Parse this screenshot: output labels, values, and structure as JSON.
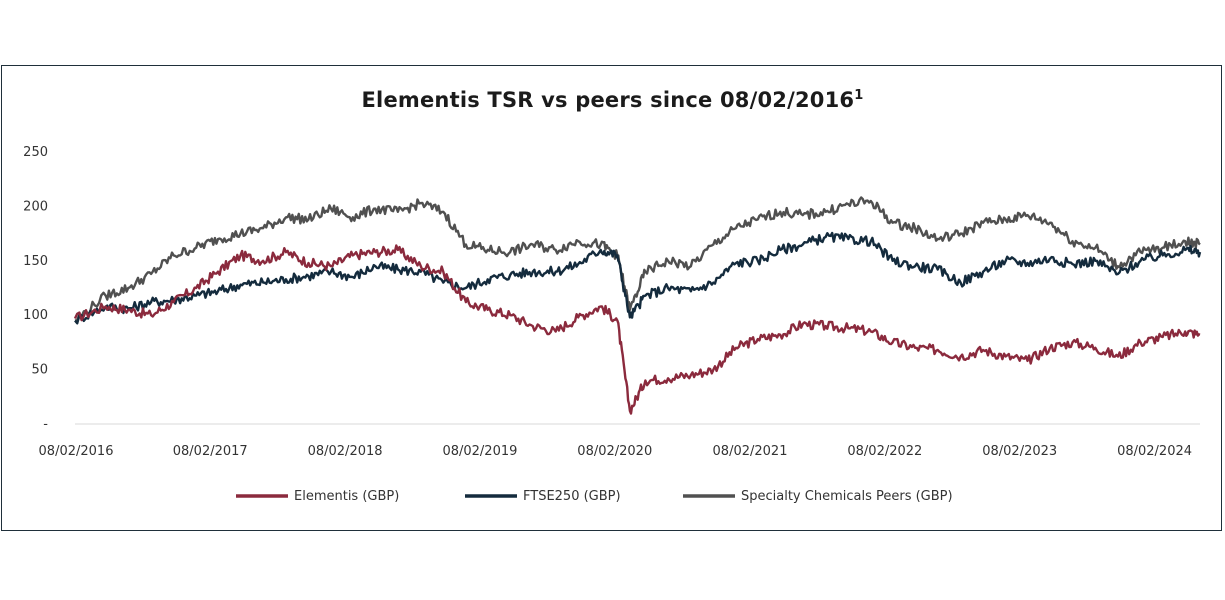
{
  "chart_data": {
    "type": "line",
    "title": "Elementis TSR vs peers since 08/02/2016",
    "title_superscript": "1",
    "xlabel": "",
    "ylabel": "",
    "ylim": [
      0,
      250
    ],
    "y_ticks": [
      {
        "value": 0,
        "label": "-"
      },
      {
        "value": 50,
        "label": "50"
      },
      {
        "value": 100,
        "label": "100"
      },
      {
        "value": 150,
        "label": "150"
      },
      {
        "value": 200,
        "label": "200"
      },
      {
        "value": 250,
        "label": "250"
      }
    ],
    "x_ticks": [
      "08/02/2016",
      "08/02/2017",
      "08/02/2018",
      "08/02/2019",
      "08/02/2020",
      "08/02/2021",
      "08/02/2022",
      "08/02/2023",
      "08/02/2024"
    ],
    "grid": false,
    "legend_position": "bottom",
    "series": [
      {
        "name": "Elementis (GBP)",
        "color": "#8b2a3d",
        "points": [
          [
            "2016-02-08",
            97
          ],
          [
            "2016-05-01",
            108
          ],
          [
            "2016-07-01",
            105
          ],
          [
            "2016-09-01",
            100
          ],
          [
            "2016-11-01",
            112
          ],
          [
            "2017-01-01",
            125
          ],
          [
            "2017-03-01",
            140
          ],
          [
            "2017-05-01",
            155
          ],
          [
            "2017-07-01",
            150
          ],
          [
            "2017-09-01",
            158
          ],
          [
            "2017-11-01",
            148
          ],
          [
            "2018-01-01",
            145
          ],
          [
            "2018-03-01",
            155
          ],
          [
            "2018-05-01",
            158
          ],
          [
            "2018-07-01",
            160
          ],
          [
            "2018-09-01",
            145
          ],
          [
            "2018-11-01",
            140
          ],
          [
            "2019-01-01",
            112
          ],
          [
            "2019-03-01",
            105
          ],
          [
            "2019-05-01",
            100
          ],
          [
            "2019-07-01",
            90
          ],
          [
            "2019-09-01",
            85
          ],
          [
            "2019-11-01",
            98
          ],
          [
            "2020-01-01",
            108
          ],
          [
            "2020-02-15",
            95
          ],
          [
            "2020-03-20",
            12
          ],
          [
            "2020-05-01",
            40
          ],
          [
            "2020-07-01",
            42
          ],
          [
            "2020-09-01",
            45
          ],
          [
            "2020-11-01",
            50
          ],
          [
            "2021-01-01",
            70
          ],
          [
            "2021-03-01",
            78
          ],
          [
            "2021-05-01",
            82
          ],
          [
            "2021-07-01",
            92
          ],
          [
            "2021-09-01",
            90
          ],
          [
            "2021-11-01",
            88
          ],
          [
            "2022-01-01",
            85
          ],
          [
            "2022-03-01",
            75
          ],
          [
            "2022-05-01",
            70
          ],
          [
            "2022-07-01",
            68
          ],
          [
            "2022-09-01",
            62
          ],
          [
            "2022-11-01",
            68
          ],
          [
            "2023-01-01",
            62
          ],
          [
            "2023-03-01",
            58
          ],
          [
            "2023-05-01",
            70
          ],
          [
            "2023-07-01",
            75
          ],
          [
            "2023-09-01",
            70
          ],
          [
            "2023-11-01",
            62
          ],
          [
            "2024-01-01",
            75
          ],
          [
            "2024-03-01",
            80
          ],
          [
            "2024-05-01",
            85
          ],
          [
            "2024-06-10",
            82
          ]
        ]
      },
      {
        "name": "FTSE250 (GBP)",
        "color": "#142b3d",
        "points": [
          [
            "2016-02-08",
            95
          ],
          [
            "2016-05-01",
            108
          ],
          [
            "2016-07-01",
            106
          ],
          [
            "2016-09-01",
            112
          ],
          [
            "2016-11-01",
            114
          ],
          [
            "2017-01-01",
            118
          ],
          [
            "2017-03-01",
            122
          ],
          [
            "2017-05-01",
            128
          ],
          [
            "2017-07-01",
            130
          ],
          [
            "2017-09-01",
            133
          ],
          [
            "2017-11-01",
            136
          ],
          [
            "2018-01-01",
            140
          ],
          [
            "2018-03-01",
            135
          ],
          [
            "2018-05-01",
            145
          ],
          [
            "2018-07-01",
            142
          ],
          [
            "2018-09-01",
            140
          ],
          [
            "2018-11-01",
            130
          ],
          [
            "2019-01-01",
            125
          ],
          [
            "2019-03-01",
            133
          ],
          [
            "2019-05-01",
            137
          ],
          [
            "2019-07-01",
            140
          ],
          [
            "2019-09-01",
            140
          ],
          [
            "2019-11-01",
            147
          ],
          [
            "2020-01-01",
            160
          ],
          [
            "2020-02-15",
            155
          ],
          [
            "2020-03-20",
            98
          ],
          [
            "2020-05-01",
            118
          ],
          [
            "2020-07-01",
            125
          ],
          [
            "2020-09-01",
            122
          ],
          [
            "2020-11-01",
            130
          ],
          [
            "2021-01-01",
            148
          ],
          [
            "2021-03-01",
            150
          ],
          [
            "2021-05-01",
            160
          ],
          [
            "2021-07-01",
            165
          ],
          [
            "2021-09-01",
            172
          ],
          [
            "2021-11-01",
            170
          ],
          [
            "2022-01-01",
            168
          ],
          [
            "2022-03-01",
            150
          ],
          [
            "2022-05-01",
            145
          ],
          [
            "2022-07-01",
            142
          ],
          [
            "2022-09-01",
            130
          ],
          [
            "2022-11-01",
            140
          ],
          [
            "2023-01-01",
            150
          ],
          [
            "2023-03-01",
            148
          ],
          [
            "2023-05-01",
            152
          ],
          [
            "2023-07-01",
            147
          ],
          [
            "2023-09-01",
            150
          ],
          [
            "2023-11-01",
            138
          ],
          [
            "2024-01-01",
            150
          ],
          [
            "2024-03-01",
            155
          ],
          [
            "2024-05-01",
            160
          ],
          [
            "2024-06-10",
            158
          ]
        ]
      },
      {
        "name": "Specialty Chemicals Peers (GBP)",
        "color": "#505050",
        "points": [
          [
            "2016-02-08",
            95
          ],
          [
            "2016-05-01",
            118
          ],
          [
            "2016-07-01",
            125
          ],
          [
            "2016-09-01",
            138
          ],
          [
            "2016-11-01",
            155
          ],
          [
            "2017-01-01",
            162
          ],
          [
            "2017-03-01",
            170
          ],
          [
            "2017-05-01",
            175
          ],
          [
            "2017-07-01",
            180
          ],
          [
            "2017-09-01",
            190
          ],
          [
            "2017-11-01",
            188
          ],
          [
            "2018-01-01",
            198
          ],
          [
            "2018-03-01",
            190
          ],
          [
            "2018-05-01",
            198
          ],
          [
            "2018-07-01",
            195
          ],
          [
            "2018-09-01",
            203
          ],
          [
            "2018-11-01",
            195
          ],
          [
            "2019-01-01",
            165
          ],
          [
            "2019-03-01",
            160
          ],
          [
            "2019-05-01",
            158
          ],
          [
            "2019-07-01",
            165
          ],
          [
            "2019-09-01",
            160
          ],
          [
            "2019-11-01",
            168
          ],
          [
            "2020-01-01",
            165
          ],
          [
            "2020-02-15",
            155
          ],
          [
            "2020-03-20",
            105
          ],
          [
            "2020-05-01",
            140
          ],
          [
            "2020-07-01",
            150
          ],
          [
            "2020-09-01",
            145
          ],
          [
            "2020-11-01",
            165
          ],
          [
            "2021-01-01",
            180
          ],
          [
            "2021-03-01",
            188
          ],
          [
            "2021-05-01",
            195
          ],
          [
            "2021-07-01",
            192
          ],
          [
            "2021-09-01",
            195
          ],
          [
            "2021-11-01",
            202
          ],
          [
            "2022-01-01",
            205
          ],
          [
            "2022-03-01",
            185
          ],
          [
            "2022-05-01",
            180
          ],
          [
            "2022-07-01",
            170
          ],
          [
            "2022-09-01",
            175
          ],
          [
            "2022-11-01",
            185
          ],
          [
            "2023-01-01",
            188
          ],
          [
            "2023-03-01",
            192
          ],
          [
            "2023-05-01",
            185
          ],
          [
            "2023-07-01",
            168
          ],
          [
            "2023-09-01",
            162
          ],
          [
            "2023-11-01",
            145
          ],
          [
            "2024-01-01",
            158
          ],
          [
            "2024-03-01",
            162
          ],
          [
            "2024-05-01",
            168
          ],
          [
            "2024-06-10",
            165
          ]
        ]
      }
    ]
  }
}
